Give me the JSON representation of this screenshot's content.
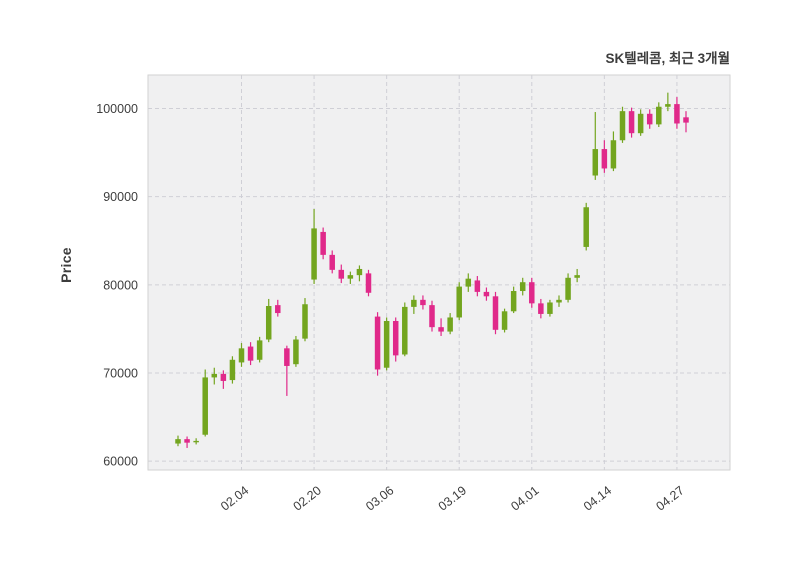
{
  "header": {
    "title": "SK텔레콤, 최근 3개월"
  },
  "axes": {
    "ylabel": "Price"
  },
  "colors": {
    "up": "#73a51f",
    "down": "#e0298a",
    "plot_bg": "#f0f0f1",
    "grid": "#cfcfd6",
    "border": "#d2d2d2",
    "tick_text": "#3d3d3d",
    "title_text": "#3d3d3d"
  },
  "chart_data": {
    "type": "candlestick",
    "title": "SK텔레콤, 최근 3개월",
    "subtitle": "",
    "xlabel": "",
    "ylabel": "Price",
    "legend": "none",
    "grid": "dashed both axes",
    "ylim": [
      59000,
      103800
    ],
    "yticks": [
      60000,
      70000,
      80000,
      90000,
      100000
    ],
    "ytick_labels": [
      "60000",
      "70000",
      "80000",
      "90000",
      "100000"
    ],
    "xticks": [
      {
        "index": 7,
        "label": "02.04"
      },
      {
        "index": 15,
        "label": "02.20"
      },
      {
        "index": 23,
        "label": "03.06"
      },
      {
        "index": 31,
        "label": "03.19"
      },
      {
        "index": 39,
        "label": "04.01"
      },
      {
        "index": 47,
        "label": "04.14"
      },
      {
        "index": 55,
        "label": "04.27"
      }
    ],
    "ohlc_format": [
      "open",
      "high",
      "low",
      "close"
    ],
    "up_color_meaning": "close >= open (green)",
    "down_color_meaning": "close < open (pink)",
    "ohlc": [
      [
        62000,
        62900,
        61700,
        62500
      ],
      [
        62500,
        62800,
        61500,
        62100
      ],
      [
        62200,
        62600,
        61900,
        62300
      ],
      [
        63000,
        70400,
        62800,
        69500
      ],
      [
        69500,
        70600,
        68700,
        69900
      ],
      [
        69900,
        70300,
        68200,
        69100
      ],
      [
        69200,
        71900,
        68800,
        71500
      ],
      [
        71200,
        73400,
        70700,
        72800
      ],
      [
        73000,
        73500,
        70900,
        71400
      ],
      [
        71500,
        74100,
        71200,
        73700
      ],
      [
        73800,
        78400,
        73500,
        77600
      ],
      [
        77700,
        78300,
        76400,
        76800
      ],
      [
        72800,
        73100,
        67400,
        70800
      ],
      [
        71000,
        74200,
        70700,
        73800
      ],
      [
        73900,
        78500,
        73600,
        77800
      ],
      [
        80600,
        88600,
        80100,
        86400
      ],
      [
        86000,
        86500,
        82900,
        83400
      ],
      [
        83400,
        83900,
        81300,
        81700
      ],
      [
        81700,
        82300,
        80200,
        80700
      ],
      [
        80700,
        81500,
        80100,
        81100
      ],
      [
        81100,
        82200,
        80400,
        81800
      ],
      [
        81300,
        81700,
        78700,
        79100
      ],
      [
        76400,
        76900,
        69700,
        70400
      ],
      [
        70600,
        76300,
        70300,
        75900
      ],
      [
        75900,
        76300,
        71300,
        72000
      ],
      [
        72100,
        78000,
        71900,
        77500
      ],
      [
        77500,
        78800,
        76700,
        78300
      ],
      [
        78300,
        78800,
        77200,
        77700
      ],
      [
        77700,
        78200,
        74700,
        75200
      ],
      [
        75200,
        76200,
        74200,
        74700
      ],
      [
        74700,
        76800,
        74400,
        76300
      ],
      [
        76300,
        80300,
        76000,
        79800
      ],
      [
        79800,
        81300,
        79200,
        80700
      ],
      [
        80500,
        81000,
        78700,
        79200
      ],
      [
        79200,
        79700,
        78200,
        78700
      ],
      [
        78700,
        79200,
        74400,
        74900
      ],
      [
        74900,
        77300,
        74600,
        77000
      ],
      [
        77000,
        79800,
        76800,
        79300
      ],
      [
        79300,
        80800,
        78800,
        80300
      ],
      [
        80300,
        80800,
        77400,
        77900
      ],
      [
        77900,
        78400,
        76200,
        76700
      ],
      [
        76700,
        78300,
        76400,
        78000
      ],
      [
        78000,
        78800,
        77500,
        78300
      ],
      [
        78300,
        81300,
        78000,
        80800
      ],
      [
        80800,
        81800,
        80300,
        81100
      ],
      [
        84300,
        89300,
        83900,
        88800
      ],
      [
        92400,
        99600,
        91900,
        95400
      ],
      [
        95400,
        96400,
        92700,
        93200
      ],
      [
        93200,
        97400,
        92900,
        96400
      ],
      [
        96400,
        100200,
        96100,
        99700
      ],
      [
        99700,
        100100,
        96700,
        97200
      ],
      [
        97200,
        99900,
        96900,
        99400
      ],
      [
        99400,
        99900,
        97700,
        98200
      ],
      [
        98200,
        100700,
        97900,
        100200
      ],
      [
        100200,
        101800,
        99700,
        100500
      ],
      [
        100500,
        101300,
        97700,
        98300
      ],
      [
        99000,
        99700,
        97300,
        98400
      ]
    ]
  }
}
